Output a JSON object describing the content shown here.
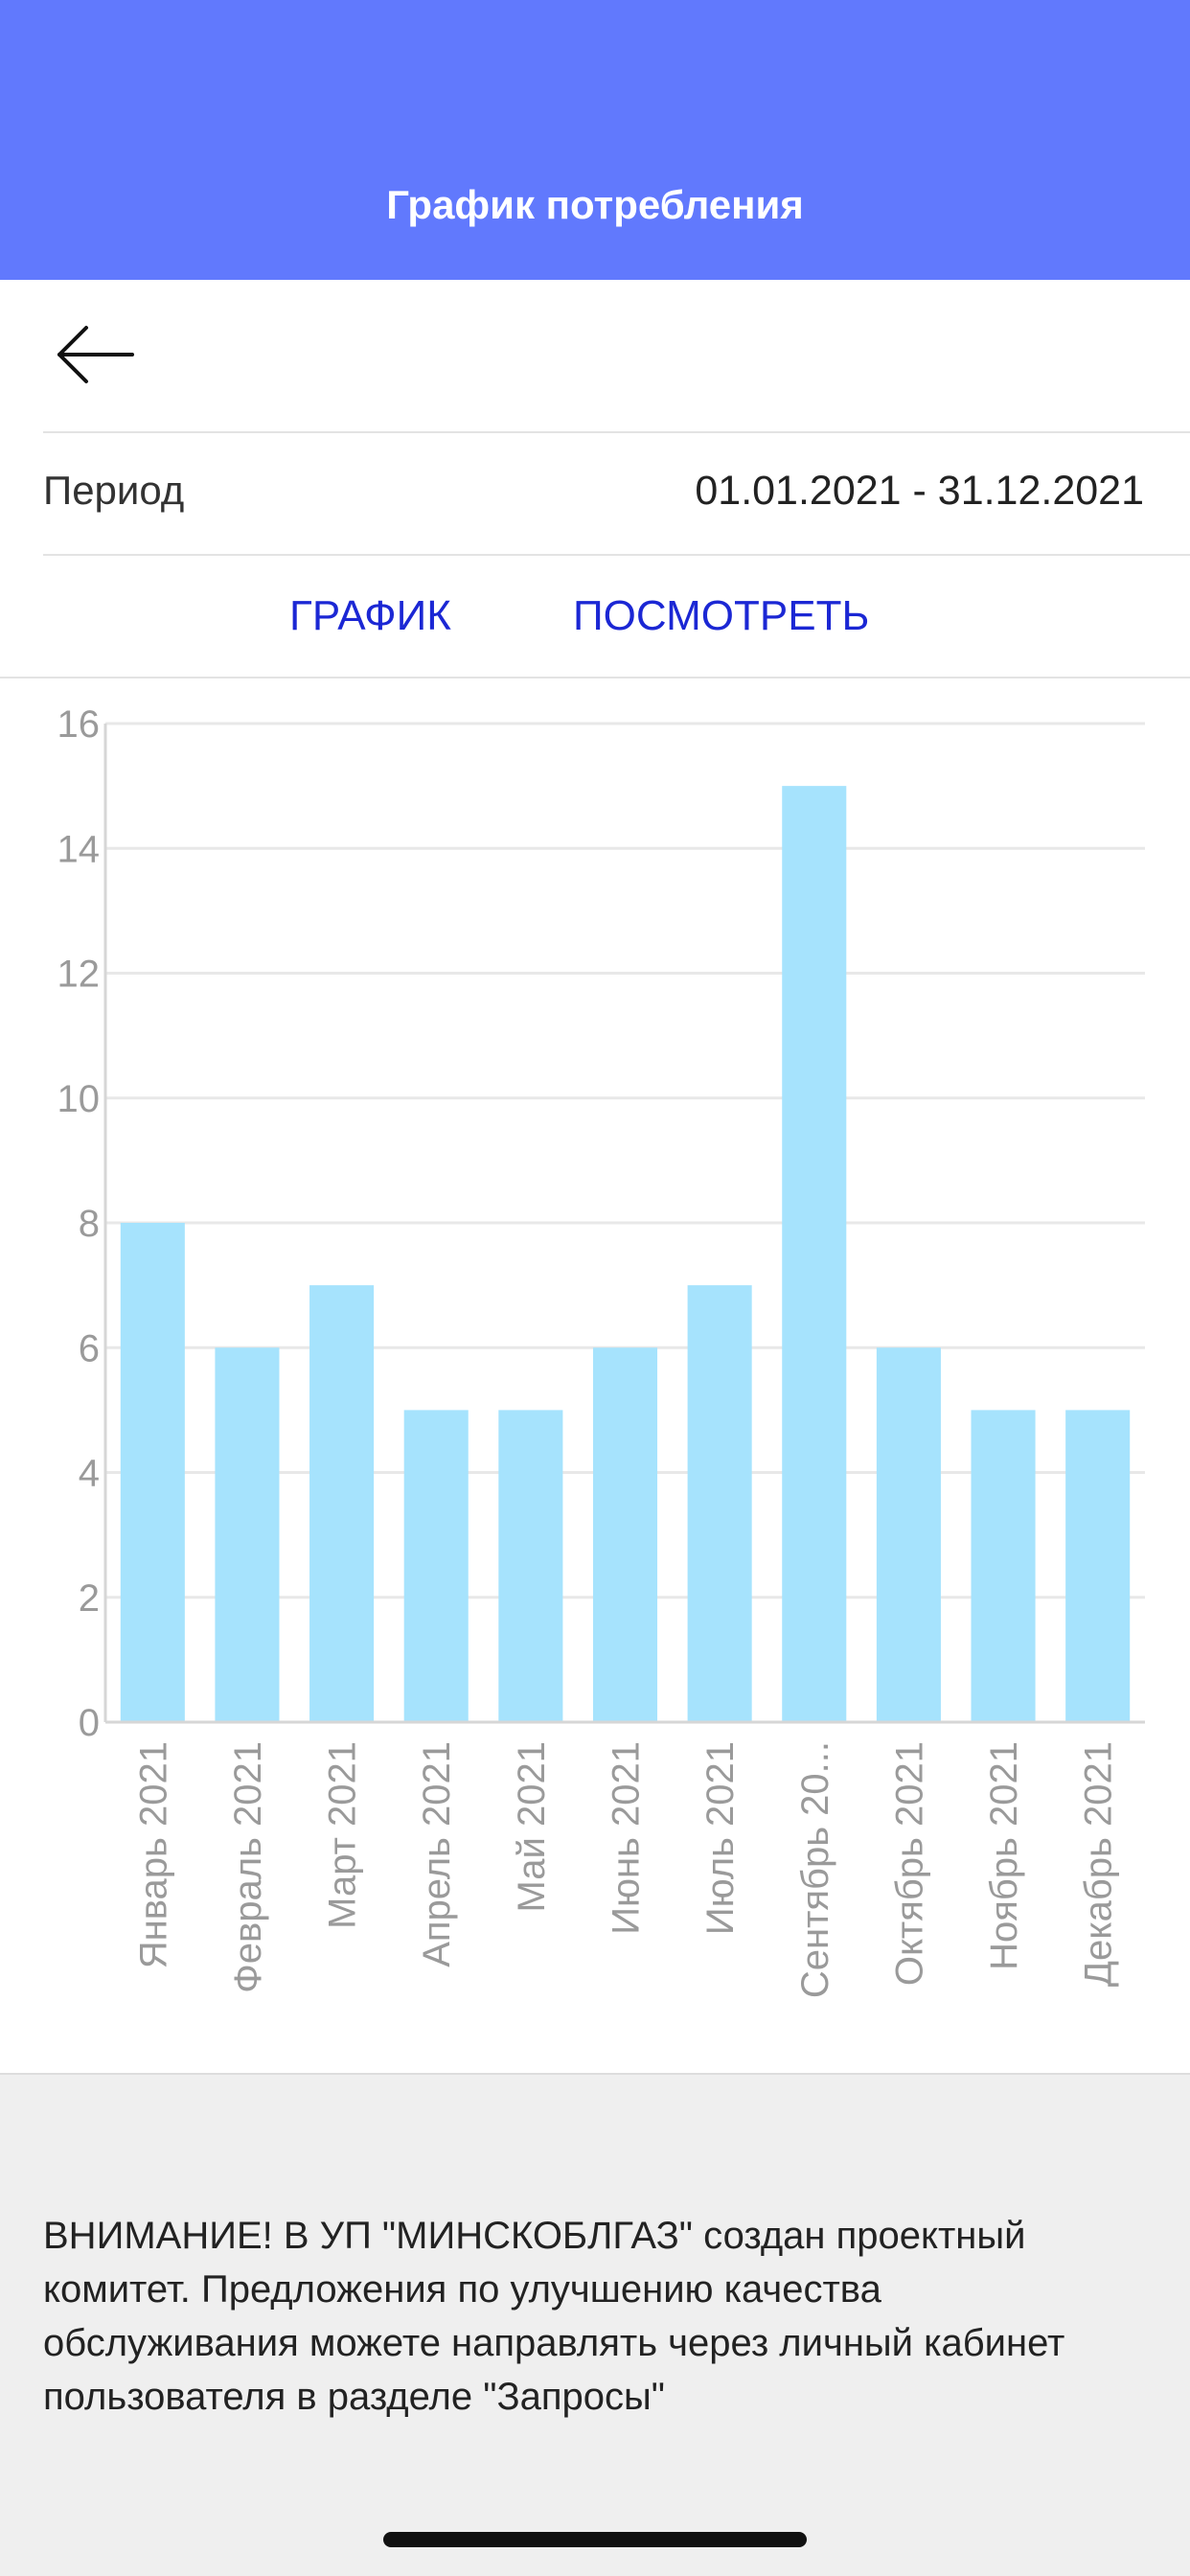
{
  "header": {
    "title": "График потребления"
  },
  "period": {
    "label": "Период",
    "value": "01.01.2021 - 31.12.2021"
  },
  "tabs": [
    {
      "label": "ГРАФИК"
    },
    {
      "label": "ПОСМОТРЕТЬ"
    }
  ],
  "chart_data": {
    "type": "bar",
    "categories": [
      "Январь 2021",
      "Февраль 2021",
      "Март 2021",
      "Апрель 2021",
      "Май 2021",
      "Июнь 2021",
      "Июль 2021",
      "Сентябрь 20...",
      "Октябрь 2021",
      "Ноябрь 2021",
      "Декабрь 2021"
    ],
    "values": [
      8,
      6,
      7,
      5,
      5,
      6,
      7,
      15,
      6,
      5,
      5
    ],
    "ylim": [
      0,
      16
    ],
    "yticks": [
      "0",
      "2",
      "4",
      "6",
      "8",
      "10",
      "12",
      "14",
      "16"
    ],
    "grid": true,
    "bar_color": "#a6e3fd"
  },
  "footer": {
    "notice": "ВНИМАНИЕ! В УП \"МИНСКОБЛГАЗ\" создан проектный комитет. Предложения по улучшению качества обслуживания можете направлять через личный кабинет пользователя в разделе \"Запросы\""
  },
  "icons": {
    "back": "arrow-left-icon"
  },
  "colors": {
    "header": "#6179fd",
    "tab_text": "#1b27d4",
    "bar": "#a6e3fd"
  }
}
